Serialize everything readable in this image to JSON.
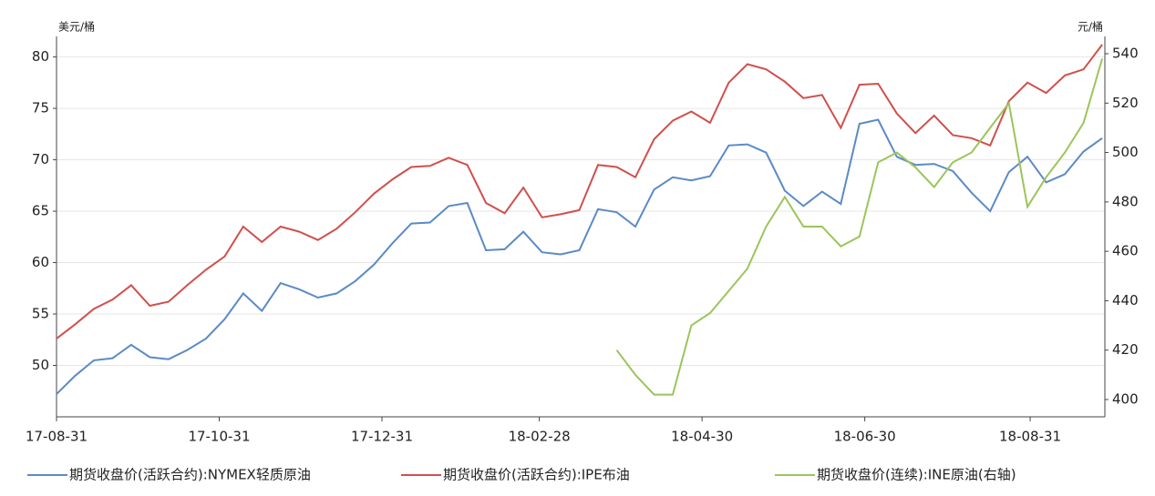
{
  "chart_data": {
    "type": "line",
    "y_label": "美元/桶",
    "y2_label": "元/桶",
    "x": [
      "17-08-31",
      "17-09-07",
      "17-09-14",
      "17-09-21",
      "17-09-28",
      "17-10-05",
      "17-10-12",
      "17-10-19",
      "17-10-26",
      "17-11-02",
      "17-11-09",
      "17-11-16",
      "17-11-23",
      "17-11-30",
      "17-12-07",
      "17-12-14",
      "17-12-21",
      "17-12-28",
      "18-01-04",
      "18-01-11",
      "18-01-18",
      "18-01-25",
      "18-02-01",
      "18-02-08",
      "18-02-15",
      "18-02-22",
      "18-03-01",
      "18-03-08",
      "18-03-15",
      "18-03-22",
      "18-03-29",
      "18-04-05",
      "18-04-12",
      "18-04-19",
      "18-04-26",
      "18-05-03",
      "18-05-10",
      "18-05-17",
      "18-05-24",
      "18-05-31",
      "18-06-07",
      "18-06-14",
      "18-06-21",
      "18-06-28",
      "18-07-05",
      "18-07-12",
      "18-07-19",
      "18-07-26",
      "18-08-02",
      "18-08-09",
      "18-08-16",
      "18-08-23",
      "18-08-30",
      "18-09-06",
      "18-09-13",
      "18-09-20",
      "18-09-27"
    ],
    "xlim": [
      "17-08-31",
      "18-09-28"
    ],
    "xticks": [
      "17-08-31",
      "17-10-31",
      "17-12-31",
      "18-02-28",
      "18-04-30",
      "18-06-30",
      "18-08-31"
    ],
    "ylim": [
      45,
      82
    ],
    "yticks": [
      50,
      55,
      60,
      65,
      70,
      75,
      80
    ],
    "y2lim": [
      393,
      547
    ],
    "y2ticks": [
      400,
      420,
      440,
      460,
      480,
      500,
      520,
      540
    ],
    "grid": true,
    "series": [
      {
        "name": "期货收盘价(活跃合约):NYMEX轻质原油",
        "color": "#5b8ac6",
        "values": [
          47.2,
          49.0,
          50.5,
          50.7,
          52.0,
          50.8,
          50.6,
          51.5,
          52.6,
          54.5,
          57.0,
          55.3,
          58.0,
          57.4,
          56.6,
          57.0,
          58.2,
          59.8,
          61.9,
          63.8,
          63.9,
          65.5,
          65.8,
          61.2,
          61.3,
          63.0,
          61.0,
          60.8,
          61.2,
          65.2,
          64.9,
          63.5,
          67.1,
          68.3,
          68.0,
          68.4,
          71.4,
          71.5,
          70.7,
          67.0,
          65.5,
          66.9,
          65.7,
          73.5,
          73.9,
          70.3,
          69.5,
          69.6,
          68.9,
          66.8,
          65.0,
          68.8,
          70.3,
          67.8,
          68.6,
          70.8,
          72.1
        ]
      },
      {
        "name": "期货收盘价(活跃合约):IPE布油",
        "color": "#d0504c",
        "values": [
          52.6,
          54.0,
          55.5,
          56.4,
          57.8,
          55.8,
          56.2,
          57.8,
          59.3,
          60.6,
          63.5,
          62.0,
          63.5,
          63.0,
          62.2,
          63.3,
          64.9,
          66.7,
          68.1,
          69.3,
          69.4,
          70.2,
          69.5,
          65.8,
          64.8,
          67.3,
          64.4,
          64.7,
          65.1,
          69.5,
          69.3,
          68.3,
          72.0,
          73.8,
          74.7,
          73.6,
          77.5,
          79.3,
          78.8,
          77.6,
          76.0,
          76.3,
          73.1,
          77.3,
          77.4,
          74.5,
          72.6,
          74.3,
          72.4,
          72.1,
          71.4,
          75.7,
          77.5,
          76.5,
          78.2,
          78.8,
          81.2
        ]
      },
      {
        "name": "期货收盘价(连续):INE原油(右轴)",
        "color": "#9bc55a",
        "axis": "y2",
        "values": [
          null,
          null,
          null,
          null,
          null,
          null,
          null,
          null,
          null,
          null,
          null,
          null,
          null,
          null,
          null,
          null,
          null,
          null,
          null,
          null,
          null,
          null,
          null,
          null,
          null,
          null,
          null,
          null,
          null,
          null,
          420,
          410,
          402,
          402,
          430,
          435,
          444,
          453,
          470,
          482,
          470,
          470,
          462,
          466,
          496,
          500,
          494,
          486,
          496,
          500,
          510,
          520,
          478,
          490,
          500,
          512,
          538
        ]
      }
    ]
  }
}
